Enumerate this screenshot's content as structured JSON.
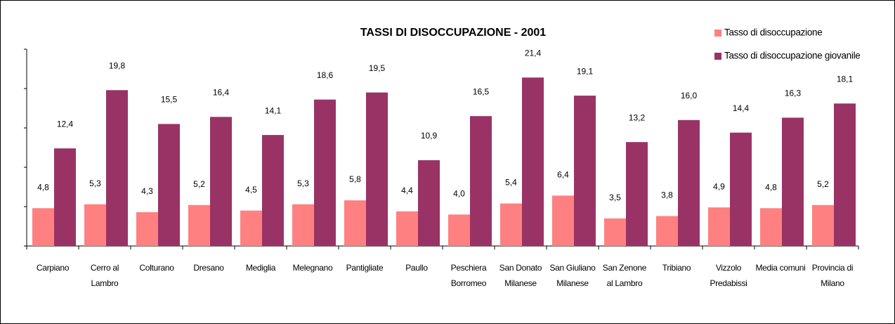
{
  "chart_data": {
    "type": "bar",
    "title": "TASSI DI DISOCCUPAZIONE - 2001",
    "categories": [
      "Carpiano",
      "Cerro al Lambro",
      "Colturano",
      "Dresano",
      "Mediglia",
      "Melegnano",
      "Pantigliate",
      "Paullo",
      "Peschiera Borromeo",
      "San Donato Milanese",
      "San Giuliano Milanese",
      "San Zenone al Lambro",
      "Tribiano",
      "Vizzolo Predabissi",
      "Media comuni",
      "Provincia di Milano"
    ],
    "series": [
      {
        "name": "Tasso di disoccupazione",
        "color": "#ff8080",
        "values": [
          4.8,
          5.3,
          4.3,
          5.2,
          4.5,
          5.3,
          5.8,
          4.4,
          4.0,
          5.4,
          6.4,
          3.5,
          3.8,
          4.9,
          4.8,
          5.2
        ],
        "value_labels": [
          "4,8",
          "5,3",
          "4,3",
          "5,2",
          "4,5",
          "5,3",
          "5,8",
          "4,4",
          "4,0",
          "5,4",
          "6,4",
          "3,5",
          "3,8",
          "4,9",
          "4,8",
          "5,2"
        ]
      },
      {
        "name": "Tasso di disoccupazione giovanile",
        "color": "#993366",
        "values": [
          12.4,
          19.8,
          15.5,
          16.4,
          14.1,
          18.6,
          19.5,
          10.9,
          16.5,
          21.4,
          19.1,
          13.2,
          16.0,
          14.4,
          16.3,
          18.1
        ],
        "value_labels": [
          "12,4",
          "19,8",
          "15,5",
          "16,4",
          "14,1",
          "18,6",
          "19,5",
          "10,9",
          "16,5",
          "21,4",
          "19,1",
          "13,2",
          "16,0",
          "14,4",
          "16,3",
          "18,1"
        ]
      }
    ],
    "ylim": [
      0,
      25
    ],
    "yticks": [
      0,
      5,
      10,
      15,
      20,
      25
    ],
    "grid": false,
    "legend": "top-right"
  }
}
